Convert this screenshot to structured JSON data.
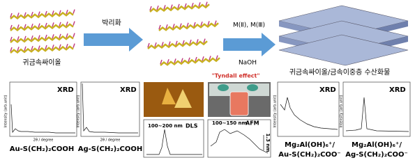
{
  "top": {
    "left_label": "귀금속싸이올",
    "arrow1_label": "박리화",
    "arrow2_label_top": "M(Ⅱ), M(Ⅲ)",
    "arrow2_label_bottom": "NaOH",
    "right_label": "귀금속싸이올/금속이중층 수산화물"
  },
  "panels": {
    "xrd_au": {
      "tag": "XRD",
      "y_label": "Intensity (arb.unit)",
      "x_label": "2θ / degree",
      "caption": "Au-S(CH₂)₂COOH"
    },
    "xrd_ag": {
      "tag": "XRD",
      "y_label": "Intensity (arb.unit)",
      "x_label": "2θ / degree",
      "caption": "Ag-S(CH₂)₂COOH"
    },
    "dls": {
      "size": "100~200 nm",
      "tag": "DLS"
    },
    "afm": {
      "tyndall": "\"Tyndall effect\"",
      "size": "100~150 nm",
      "tag": "AFM",
      "height": "1.3 nm"
    },
    "xrd_mg_au": {
      "tag": "XRD",
      "y_label": "Intensity (arb.unit)",
      "caption_line1": "Mg₂Al(OH)₆⁺/",
      "caption_line2": "Au-S(CH₂)₂COO⁻"
    },
    "xrd_mg_ag": {
      "tag": "XRD",
      "y_label": "Intensity (arb.unit)",
      "caption_line1": "Mg₂Al(OH)₆⁺/",
      "caption_line2": "Ag-S(CH₂)₂COO⁻"
    }
  }
}
